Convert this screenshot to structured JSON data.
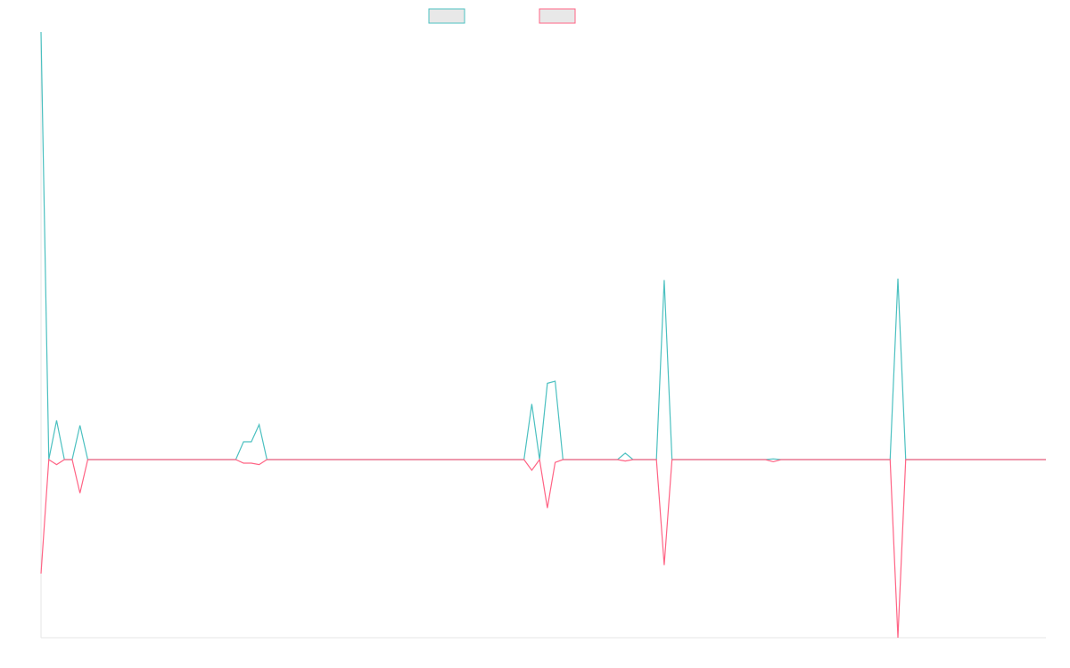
{
  "chart_data": {
    "type": "line",
    "x": [
      0,
      1,
      2,
      3,
      4,
      5,
      6,
      7,
      8,
      9,
      10,
      11,
      12,
      13,
      14,
      15,
      16,
      17,
      18,
      19,
      20,
      21,
      22,
      23,
      24,
      25,
      26,
      27,
      28,
      29,
      30,
      31,
      32,
      33,
      34,
      35,
      36,
      37,
      38,
      39,
      40,
      41,
      42,
      43,
      44,
      45,
      46,
      47,
      48,
      49,
      50,
      51,
      52,
      53,
      54,
      55,
      56,
      57,
      58,
      59,
      60,
      61,
      62,
      63,
      64,
      65,
      66,
      67,
      68,
      69,
      70,
      71,
      72,
      73,
      74,
      75,
      76,
      77,
      78,
      79,
      80,
      81,
      82,
      83,
      84,
      85,
      86,
      87,
      88,
      89,
      90,
      91,
      92,
      93,
      94,
      95,
      96,
      97,
      98,
      99,
      100,
      101,
      102,
      103,
      104,
      105,
      106,
      107,
      108,
      109,
      110,
      111,
      112,
      113,
      114,
      115,
      116,
      117,
      118,
      119,
      120,
      121,
      122,
      123,
      124,
      125,
      126,
      127,
      128,
      129
    ],
    "series": [
      {
        "name": "",
        "color": "#4bc0c0",
        "values": [
          600,
          0,
          55,
          0,
          0,
          48,
          0,
          0,
          0,
          0,
          0,
          0,
          0,
          0,
          0,
          0,
          0,
          0,
          0,
          0,
          0,
          0,
          0,
          0,
          0,
          0,
          25,
          25,
          49,
          0,
          0,
          0,
          0,
          0,
          0,
          0,
          0,
          0,
          0,
          0,
          0,
          0,
          0,
          0,
          0,
          0,
          0,
          0,
          0,
          0,
          0,
          0,
          0,
          0,
          0,
          0,
          0,
          0,
          0,
          0,
          0,
          0,
          0,
          78,
          0,
          107,
          110,
          0,
          0,
          0,
          0,
          0,
          0,
          0,
          0,
          9,
          0,
          0,
          0,
          0,
          252,
          0,
          0,
          0,
          0,
          0,
          0,
          0,
          0,
          0,
          0,
          0,
          0,
          0,
          1,
          0,
          0,
          0,
          0,
          0,
          0,
          0,
          0,
          0,
          0,
          0,
          0,
          0,
          0,
          0,
          254,
          0,
          0,
          0,
          0,
          0,
          0,
          0,
          0,
          0,
          0,
          0,
          0,
          0,
          0,
          0,
          0,
          0,
          0,
          0
        ]
      },
      {
        "name": "",
        "color": "#ff6384",
        "values": [
          -160,
          0,
          -7,
          0,
          0,
          -47,
          0,
          0,
          0,
          0,
          0,
          0,
          0,
          0,
          0,
          0,
          0,
          0,
          0,
          0,
          0,
          0,
          0,
          0,
          0,
          0,
          -5,
          -5,
          -7,
          0,
          0,
          0,
          0,
          0,
          0,
          0,
          0,
          0,
          0,
          0,
          0,
          0,
          0,
          0,
          0,
          0,
          0,
          0,
          0,
          0,
          0,
          0,
          0,
          0,
          0,
          0,
          0,
          0,
          0,
          0,
          0,
          0,
          0,
          -15,
          0,
          -68,
          -4,
          0,
          0,
          0,
          0,
          0,
          0,
          0,
          0,
          -2,
          0,
          0,
          0,
          0,
          -148,
          0,
          0,
          0,
          0,
          0,
          0,
          0,
          0,
          0,
          0,
          0,
          0,
          0,
          -3,
          0,
          0,
          0,
          0,
          0,
          0,
          0,
          0,
          0,
          0,
          0,
          0,
          0,
          0,
          0,
          -250,
          0,
          0,
          0,
          0,
          0,
          0,
          0,
          0,
          0,
          0,
          0,
          0,
          0,
          0,
          0,
          0,
          0,
          0,
          0
        ]
      }
    ],
    "xlim": [
      0,
      129
    ],
    "ylim": [
      -250,
      600
    ],
    "grid": false,
    "legend_position": "top-center",
    "title": "",
    "xlabel": "",
    "ylabel": ""
  }
}
